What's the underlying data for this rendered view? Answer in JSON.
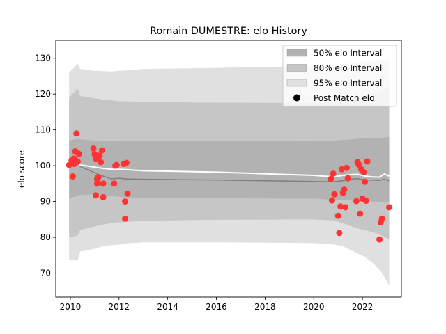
{
  "chart_data": {
    "type": "line",
    "title": "Romain DUMESTRE: elo History",
    "xlabel": "",
    "ylabel": "elo score",
    "xlim": [
      2009.4,
      2023.6
    ],
    "ylim": [
      63.3,
      135
    ],
    "x_ticks": [
      2010,
      2012,
      2014,
      2016,
      2018,
      2020,
      2022
    ],
    "y_ticks": [
      70,
      80,
      90,
      100,
      110,
      120,
      130
    ],
    "grid": false,
    "legend_placement": "top-right",
    "legend": [
      {
        "label": "50% elo Interval",
        "kind": "band",
        "color": "#b2b2b2"
      },
      {
        "label": "80% elo Interval",
        "kind": "band",
        "color": "#c6c6c6"
      },
      {
        "label": "95% elo Interval",
        "kind": "band",
        "color": "#e0e0e0"
      },
      {
        "label": "Post Match elo",
        "kind": "marker",
        "color": "#000000"
      }
    ],
    "colors": {
      "band95": "#e0e0e0",
      "band80": "#c6c6c6",
      "band50": "#b2b2b2",
      "median": "#7f7f7f",
      "mean": "#ffffff",
      "points": "#ff3333"
    },
    "bands": {
      "x": [
        2009.95,
        2010.3,
        2010.4,
        2011.0,
        2011.3,
        2011.7,
        2012.0,
        2012.3,
        2013.0,
        2016.0,
        2020.0,
        2020.8,
        2021.2,
        2021.5,
        2021.8,
        2022.1,
        2022.4,
        2022.7,
        2022.9,
        2023.1
      ],
      "lo95": [
        73.8,
        73.5,
        76.0,
        76.8,
        77.5,
        77.8,
        78.0,
        78.3,
        78.6,
        78.6,
        78.4,
        78.0,
        77.5,
        76.5,
        75.5,
        74.5,
        73.0,
        71.0,
        69.0,
        66.5
      ],
      "hi95": [
        126.0,
        128.5,
        127.0,
        126.5,
        126.4,
        126.3,
        126.5,
        126.6,
        127.0,
        127.3,
        127.8,
        128.0,
        128.3,
        128.6,
        128.9,
        129.1,
        129.3,
        129.5,
        129.6,
        129.6
      ],
      "lo80": [
        80.0,
        80.5,
        82.0,
        83.0,
        83.5,
        84.0,
        84.2,
        84.3,
        84.6,
        84.9,
        85.0,
        84.7,
        84.0,
        83.2,
        82.5,
        82.0,
        81.5,
        80.8,
        80.0,
        79.5
      ],
      "hi80": [
        119.0,
        121.5,
        119.5,
        118.8,
        118.5,
        118.3,
        118.0,
        118.0,
        117.8,
        117.6,
        117.5,
        117.8,
        118.0,
        118.4,
        118.8,
        119.5,
        120.0,
        120.8,
        121.5,
        122.0
      ],
      "lo50": [
        91.0,
        91.5,
        91.8,
        92.0,
        91.8,
        91.5,
        91.3,
        91.2,
        91.0,
        90.9,
        90.8,
        90.5,
        90.4,
        90.3,
        90.4,
        90.2,
        90.0,
        89.9,
        89.8,
        89.7
      ],
      "hi50": [
        107.0,
        107.5,
        107.4,
        107.0,
        106.8,
        106.8,
        106.8,
        106.9,
        106.9,
        106.9,
        106.8,
        107.0,
        107.2,
        107.3,
        107.5,
        107.6,
        107.7,
        107.8,
        107.9,
        108.0
      ],
      "median": [
        100.2,
        100.8,
        99.8,
        98.0,
        97.2,
        96.3,
        96.5,
        96.3,
        96.2,
        96.0,
        95.6,
        95.5,
        95.8,
        96.2,
        96.4,
        96.0,
        96.0,
        95.9,
        96.2,
        95.8
      ],
      "mean": [
        100.3,
        101.2,
        100.2,
        99.6,
        99.3,
        99.0,
        99.0,
        98.9,
        98.6,
        98.2,
        97.3,
        96.9,
        97.3,
        97.5,
        97.6,
        97.1,
        96.9,
        96.8,
        97.7,
        97.1
      ]
    },
    "points": {
      "x": [
        2009.95,
        2010.05,
        2010.1,
        2010.15,
        2010.2,
        2010.25,
        2010.3,
        2010.35,
        2010.15,
        2010.25,
        2010.95,
        2011.0,
        2011.05,
        2011.1,
        2011.15,
        2011.2,
        2011.25,
        2011.3,
        2011.35,
        2011.05,
        2011.1,
        2011.35,
        2011.8,
        2011.85,
        2011.9,
        2012.2,
        2012.25,
        2012.3,
        2012.35,
        2012.25,
        2020.7,
        2020.75,
        2020.8,
        2020.85,
        2021.0,
        2021.05,
        2021.1,
        2021.15,
        2021.2,
        2021.25,
        2021.3,
        2021.35,
        2021.4,
        2021.75,
        2021.8,
        2021.85,
        2021.9,
        2021.95,
        2022.0,
        2022.05,
        2022.1,
        2022.15,
        2022.2,
        2022.7,
        2022.75,
        2022.8,
        2023.1
      ],
      "y": [
        100.2,
        101.5,
        97.0,
        102.0,
        104.0,
        109.0,
        101.2,
        103.3,
        100.5,
        103.8,
        104.8,
        103.2,
        101.8,
        95.0,
        96.8,
        102.8,
        101.0,
        104.3,
        95.0,
        91.7,
        96.2,
        91.2,
        95.0,
        100.0,
        100.2,
        100.5,
        90.0,
        100.8,
        92.2,
        85.2,
        96.3,
        90.3,
        97.8,
        92.0,
        86.0,
        81.2,
        88.6,
        99.0,
        92.4,
        93.3,
        88.4,
        99.4,
        96.5,
        90.1,
        101.0,
        100.3,
        86.6,
        99.0,
        90.8,
        98.2,
        95.5,
        90.2,
        101.2,
        79.4,
        84.2,
        85.2,
        88.4
      ]
    }
  }
}
